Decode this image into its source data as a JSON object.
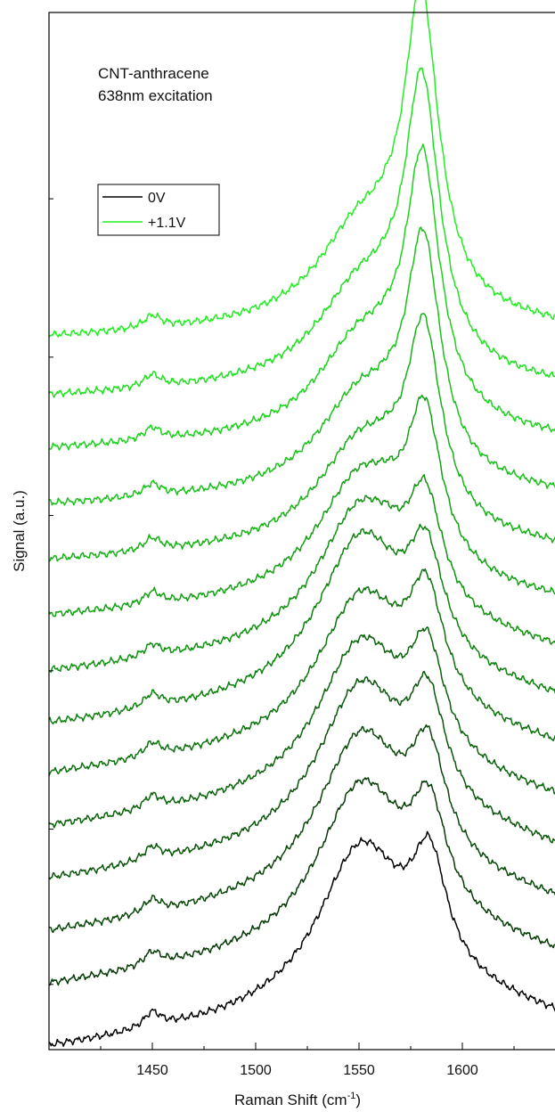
{
  "chart_data": {
    "type": "line",
    "title": "",
    "xlabel": "Raman Shift (cm",
    "xlabel_sup": "-1",
    "xlabel_tail": ")",
    "ylabel": "Signal (a.u.)",
    "xlim": [
      1400,
      1650
    ],
    "ylim": [
      0,
      16.7
    ],
    "x_ticks": [
      1450,
      1500,
      1550,
      1600
    ],
    "x_tick_labels": [
      "1450",
      "1500",
      "1550",
      "1600"
    ],
    "y_tick_labels_shown": false,
    "grid": false,
    "legend_placement": "top-left",
    "annotation_lines": [
      "CNT-anthracene",
      "638nm excitation"
    ],
    "legend": [
      {
        "label": "0V",
        "color": "#000000"
      },
      {
        "label": "+1.1V",
        "color": "#22ee22"
      }
    ],
    "series": [
      {
        "offset": 0.0,
        "peaks": {
          "baseline": 0.0,
          "tilt": 1.0,
          "d_peak_1450": 0.25,
          "broad_1550": 2.6,
          "g_1584": 1.7
        },
        "color": "#000000"
      },
      {
        "offset": 1.0,
        "peaks": {
          "baseline": 0.0,
          "tilt": 1.0,
          "d_peak_1450": 0.22,
          "broad_1550": 2.6,
          "g_1584": 1.55
        },
        "color": "#053a05"
      },
      {
        "offset": 1.85,
        "peaks": {
          "baseline": 0.0,
          "tilt": 1.0,
          "d_peak_1450": 0.22,
          "broad_1550": 2.55,
          "g_1584": 1.6
        },
        "color": "#074807"
      },
      {
        "offset": 2.7,
        "peaks": {
          "baseline": 0.0,
          "tilt": 1.0,
          "d_peak_1450": 0.22,
          "broad_1550": 2.5,
          "g_1584": 1.6
        },
        "color": "#085608"
      },
      {
        "offset": 3.55,
        "peaks": {
          "baseline": 0.0,
          "tilt": 0.9,
          "d_peak_1450": 0.22,
          "broad_1550": 2.4,
          "g_1584": 1.6
        },
        "color": "#096409"
      },
      {
        "offset": 4.4,
        "peaks": {
          "baseline": 0.0,
          "tilt": 0.9,
          "d_peak_1450": 0.22,
          "broad_1550": 2.3,
          "g_1584": 1.7
        },
        "color": "#0b730b"
      },
      {
        "offset": 5.2,
        "peaks": {
          "baseline": 0.0,
          "tilt": 0.8,
          "d_peak_1450": 0.22,
          "broad_1550": 2.5,
          "g_1584": 1.6
        },
        "color": "#0d820d"
      },
      {
        "offset": 6.05,
        "peaks": {
          "baseline": 0.0,
          "tilt": 0.7,
          "d_peak_1450": 0.2,
          "broad_1550": 2.2,
          "g_1584": 1.7
        },
        "color": "#0f920f"
      },
      {
        "offset": 6.95,
        "peaks": {
          "baseline": 0.0,
          "tilt": 0.5,
          "d_peak_1450": 0.2,
          "broad_1550": 1.9,
          "g_1584": 2.4
        },
        "color": "#12a212"
      },
      {
        "offset": 7.85,
        "peaks": {
          "baseline": 0.0,
          "tilt": 0.4,
          "d_peak_1450": 0.2,
          "broad_1550": 1.6,
          "g_1584": 3.0
        },
        "color": "#15b215"
      },
      {
        "offset": 8.75,
        "peaks": {
          "baseline": 0.0,
          "tilt": 0.3,
          "d_peak_1450": 0.2,
          "broad_1550": 1.5,
          "g_1584": 3.6
        },
        "color": "#18c218"
      },
      {
        "offset": 9.65,
        "peaks": {
          "baseline": 0.0,
          "tilt": 0.3,
          "d_peak_1450": 0.2,
          "broad_1550": 1.5,
          "g_1584": 4.0
        },
        "color": "#1bd21b"
      },
      {
        "offset": 10.5,
        "peaks": {
          "baseline": 0.0,
          "tilt": 0.3,
          "d_peak_1450": 0.2,
          "broad_1550": 1.5,
          "g_1584": 4.4
        },
        "color": "#1fe01f"
      },
      {
        "offset": 11.45,
        "peaks": {
          "baseline": 0.0,
          "tilt": 0.3,
          "d_peak_1450": 0.2,
          "broad_1550": 1.5,
          "g_1584": 4.8
        },
        "color": "#22ee22"
      }
    ]
  }
}
